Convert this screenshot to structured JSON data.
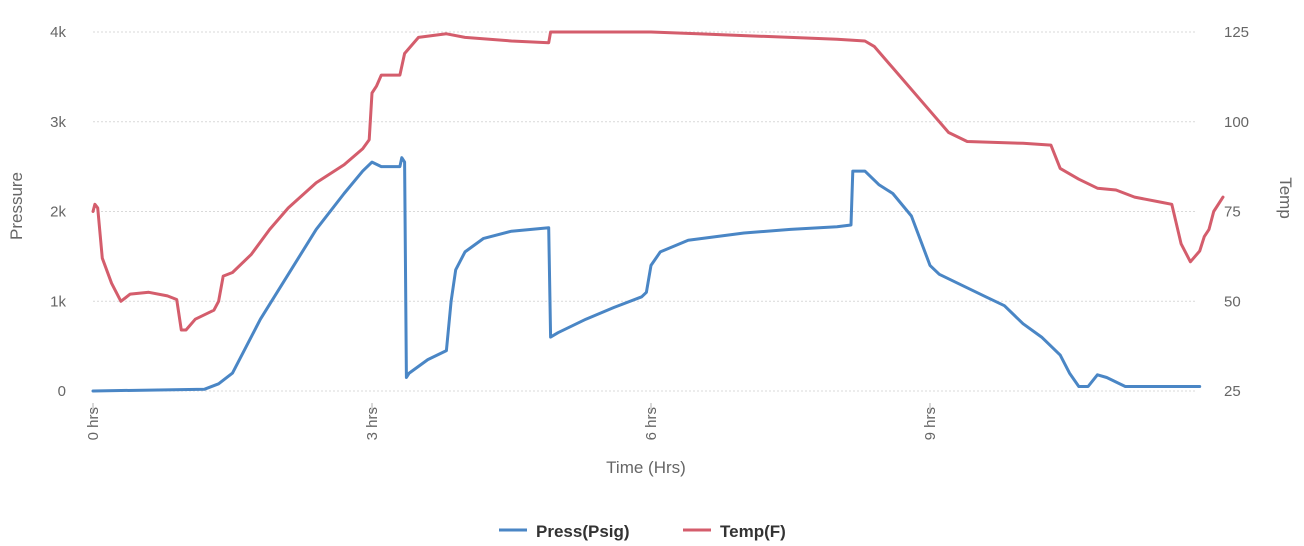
{
  "chart_data": {
    "type": "line",
    "xlabel": "Time (Hrs)",
    "ylabel_left": "Pressure",
    "ylabel_right": "Temp",
    "x_range": [
      0,
      11.9
    ],
    "x_ticks": [
      0,
      3,
      6,
      9
    ],
    "x_tick_labels": [
      "0 hrs",
      "3 hrs",
      "6 hrs",
      "9 hrs"
    ],
    "y_left_range": [
      0,
      4000
    ],
    "y_left_ticks": [
      0,
      1000,
      2000,
      3000,
      4000
    ],
    "y_left_tick_labels": [
      "0",
      "1k",
      "2k",
      "3k",
      "4k"
    ],
    "y_right_range": [
      25,
      125
    ],
    "y_right_ticks": [
      25,
      50,
      75,
      100,
      125
    ],
    "y_right_tick_labels": [
      "25",
      "50",
      "75",
      "100",
      "125"
    ],
    "grid": true,
    "legend_position": "bottom-center",
    "series": [
      {
        "name": "Press(Psig)",
        "axis": "left",
        "color": "#4a86c5",
        "points": [
          [
            0,
            0
          ],
          [
            1.2,
            20
          ],
          [
            1.35,
            80
          ],
          [
            1.5,
            200
          ],
          [
            1.8,
            800
          ],
          [
            2.1,
            1300
          ],
          [
            2.4,
            1800
          ],
          [
            2.7,
            2200
          ],
          [
            2.9,
            2450
          ],
          [
            3.0,
            2550
          ],
          [
            3.1,
            2500
          ],
          [
            3.3,
            2500
          ],
          [
            3.32,
            2600
          ],
          [
            3.35,
            2550
          ],
          [
            3.37,
            150
          ],
          [
            3.4,
            200
          ],
          [
            3.6,
            350
          ],
          [
            3.8,
            450
          ],
          [
            3.85,
            1000
          ],
          [
            3.9,
            1350
          ],
          [
            4.0,
            1550
          ],
          [
            4.2,
            1700
          ],
          [
            4.5,
            1780
          ],
          [
            4.9,
            1820
          ],
          [
            4.92,
            600
          ],
          [
            5.0,
            650
          ],
          [
            5.3,
            800
          ],
          [
            5.6,
            930
          ],
          [
            5.9,
            1050
          ],
          [
            5.95,
            1100
          ],
          [
            6.0,
            1400
          ],
          [
            6.1,
            1550
          ],
          [
            6.4,
            1680
          ],
          [
            7.0,
            1760
          ],
          [
            7.5,
            1800
          ],
          [
            8.0,
            1830
          ],
          [
            8.15,
            1850
          ],
          [
            8.17,
            2450
          ],
          [
            8.3,
            2450
          ],
          [
            8.45,
            2300
          ],
          [
            8.6,
            2200
          ],
          [
            8.8,
            1950
          ],
          [
            9.0,
            1400
          ],
          [
            9.1,
            1300
          ],
          [
            9.2,
            1250
          ],
          [
            9.4,
            1150
          ],
          [
            9.6,
            1050
          ],
          [
            9.8,
            950
          ],
          [
            10.0,
            750
          ],
          [
            10.2,
            600
          ],
          [
            10.4,
            400
          ],
          [
            10.5,
            200
          ],
          [
            10.6,
            50
          ],
          [
            10.7,
            50
          ],
          [
            10.8,
            180
          ],
          [
            10.9,
            150
          ],
          [
            11.0,
            100
          ],
          [
            11.1,
            50
          ],
          [
            11.9,
            50
          ]
        ]
      },
      {
        "name": "Temp(F)",
        "axis": "right",
        "color": "#d45d6c",
        "points": [
          [
            0,
            75
          ],
          [
            0.02,
            77
          ],
          [
            0.05,
            76
          ],
          [
            0.1,
            62
          ],
          [
            0.2,
            55
          ],
          [
            0.3,
            50
          ],
          [
            0.4,
            52
          ],
          [
            0.6,
            52.5
          ],
          [
            0.8,
            51.5
          ],
          [
            0.9,
            50.5
          ],
          [
            0.95,
            42
          ],
          [
            1.0,
            42
          ],
          [
            1.1,
            45
          ],
          [
            1.3,
            47.5
          ],
          [
            1.35,
            50
          ],
          [
            1.4,
            57
          ],
          [
            1.5,
            58
          ],
          [
            1.7,
            63
          ],
          [
            1.9,
            70
          ],
          [
            2.1,
            76
          ],
          [
            2.4,
            83
          ],
          [
            2.7,
            88
          ],
          [
            2.9,
            92.5
          ],
          [
            2.97,
            95
          ],
          [
            3.0,
            108
          ],
          [
            3.05,
            110
          ],
          [
            3.1,
            113
          ],
          [
            3.3,
            113
          ],
          [
            3.35,
            119
          ],
          [
            3.5,
            123.5
          ],
          [
            3.8,
            124.5
          ],
          [
            4.0,
            123.5
          ],
          [
            4.5,
            122.5
          ],
          [
            4.9,
            122
          ],
          [
            4.92,
            125
          ],
          [
            5.5,
            125
          ],
          [
            6.0,
            125
          ],
          [
            6.5,
            124.5
          ],
          [
            7.0,
            124
          ],
          [
            7.5,
            123.5
          ],
          [
            8.0,
            123
          ],
          [
            8.3,
            122.5
          ],
          [
            8.4,
            121
          ],
          [
            8.6,
            115
          ],
          [
            8.9,
            106
          ],
          [
            9.2,
            97
          ],
          [
            9.4,
            94.5
          ],
          [
            10.0,
            94
          ],
          [
            10.3,
            93.5
          ],
          [
            10.4,
            87
          ],
          [
            10.6,
            84
          ],
          [
            10.8,
            81.5
          ],
          [
            11.0,
            81
          ],
          [
            11.2,
            79
          ],
          [
            11.5,
            77.5
          ],
          [
            11.6,
            77
          ],
          [
            11.7,
            66
          ],
          [
            11.8,
            61
          ],
          [
            11.9,
            64
          ],
          [
            11.95,
            68
          ],
          [
            12.0,
            70
          ],
          [
            12.05,
            75
          ],
          [
            12.15,
            79
          ]
        ]
      }
    ]
  }
}
